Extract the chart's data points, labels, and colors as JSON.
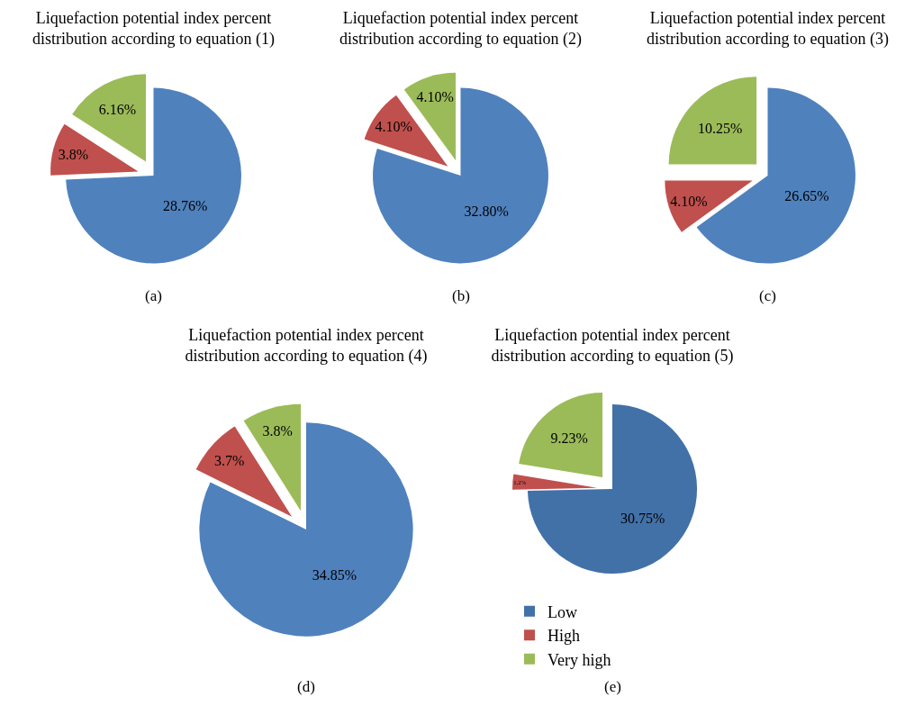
{
  "chart_data": [
    {
      "type": "pie",
      "title": "Liquefaction potential index percent distribution according to equation (1)",
      "categories": [
        null,
        null,
        null
      ],
      "values": [
        28.76,
        3.8,
        6.16
      ],
      "value_labels": [
        "28.76%",
        "3.8%",
        "6.16%"
      ],
      "colors": [
        "#4f81bd",
        "#c0504d",
        "#9bbb59"
      ],
      "annotations": [
        "(a)"
      ]
    },
    {
      "type": "pie",
      "title": "Liquefaction potential index percent distribution according to equation (2)",
      "categories": [
        null,
        null,
        null
      ],
      "values": [
        32.8,
        4.1,
        4.1
      ],
      "value_labels": [
        "32.80%",
        "4.10%",
        "4.10%"
      ],
      "colors": [
        "#4f81bd",
        "#c0504d",
        "#9bbb59"
      ],
      "annotations": [
        "(b)"
      ]
    },
    {
      "type": "pie",
      "title": "Liquefaction potential index percent distribution according to equation (3)",
      "categories": [
        null,
        null,
        null
      ],
      "values": [
        26.65,
        4.1,
        10.25
      ],
      "value_labels": [
        "26.65%",
        "4.10%",
        "10.25%"
      ],
      "colors": [
        "#4f81bd",
        "#c0504d",
        "#9bbb59"
      ],
      "annotations": [
        "(c)"
      ]
    },
    {
      "type": "pie",
      "title": "Liquefaction potential index percent distribution according to equation (4)",
      "categories": [
        null,
        null,
        null
      ],
      "values": [
        34.85,
        3.7,
        3.8
      ],
      "value_labels": [
        "34.85%",
        "3.7%",
        "3.8%"
      ],
      "colors": [
        "#4f81bd",
        "#c0504d",
        "#9bbb59"
      ],
      "annotations": [
        "(d)"
      ]
    },
    {
      "type": "pie",
      "title": "Liquefaction potential index percent distribution according to equation (5)",
      "categories": [
        "Low",
        "High",
        "Very high"
      ],
      "values": [
        30.75,
        1.2,
        9.23
      ],
      "value_labels": [
        "30.75%",
        "1.2%",
        "9.23%"
      ],
      "colors": [
        "#4271a8",
        "#c0504d",
        "#9bbb59"
      ],
      "legend": "bottom",
      "annotations": [
        "(e)"
      ]
    }
  ]
}
